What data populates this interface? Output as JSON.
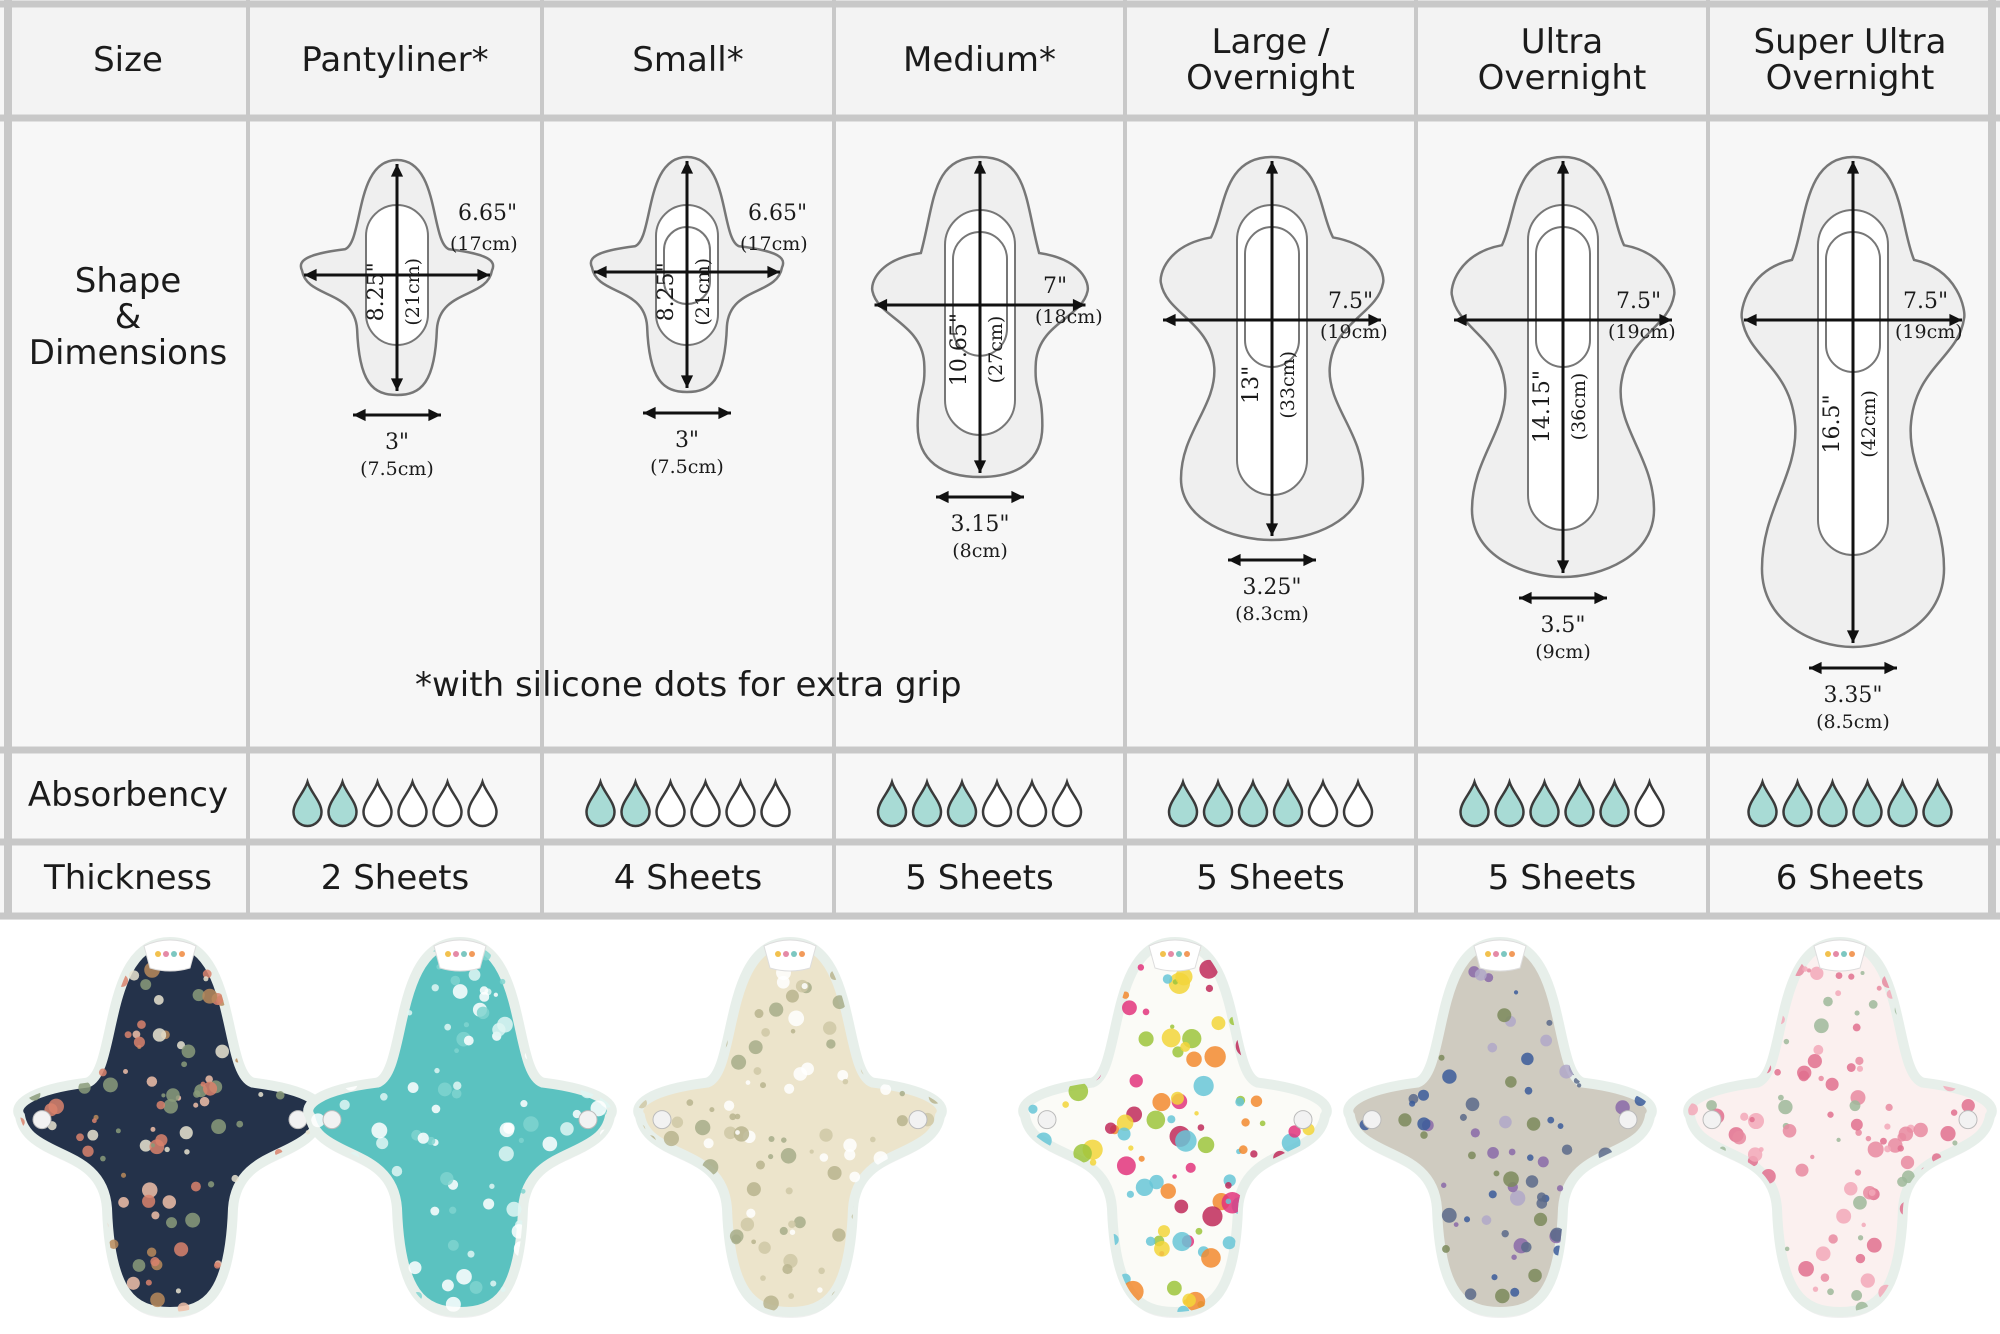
{
  "row_labels": {
    "size": "Size",
    "shape": [
      "Shape",
      "&",
      "Dimensions"
    ],
    "absorbency": "Absorbency",
    "thickness": "Thickness"
  },
  "note": "*with silicone dots for extra grip",
  "colors": {
    "grid_line": "#c8c8c8",
    "drop_fill": "#a8dbd5",
    "drop_outline": "#3a3a3a",
    "pad_outline": "#777777"
  },
  "products": [
    {
      "header": [
        "Pantyliner*"
      ],
      "length_in": "8.25\"",
      "length_cm": "(21cm)",
      "width_in": "6.65\"",
      "width_cm": "(17cm)",
      "base_in": "3\"",
      "base_cm": "(7.5cm)",
      "absorbency": 2,
      "absorbency_max": 6,
      "thickness": "2 Sheets",
      "fabric": "navy-floral"
    },
    {
      "header": [
        "Small*"
      ],
      "length_in": "8.25\"",
      "length_cm": "(21cm)",
      "width_in": "6.65\"",
      "width_cm": "(17cm)",
      "base_in": "3\"",
      "base_cm": "(7.5cm)",
      "absorbency": 2,
      "absorbency_max": 6,
      "thickness": "4 Sheets",
      "fabric": "teal-daisy"
    },
    {
      "header": [
        "Medium*"
      ],
      "length_in": "10.65\"",
      "length_cm": "(27cm)",
      "width_in": "7\"",
      "width_cm": "(18cm)",
      "base_in": "3.15\"",
      "base_cm": "(8cm)",
      "absorbency": 3,
      "absorbency_max": 6,
      "thickness": "5 Sheets",
      "fabric": "cream-vine"
    },
    {
      "header": [
        "Large /",
        "Overnight"
      ],
      "length_in": "13\"",
      "length_cm": "(33cm)",
      "width_in": "7.5\"",
      "width_cm": "(19cm)",
      "base_in": "3.25\"",
      "base_cm": "(8.3cm)",
      "absorbency": 4,
      "absorbency_max": 6,
      "thickness": "5 Sheets",
      "fabric": "white-bright-floral"
    },
    {
      "header": [
        "Ultra",
        "Overnight"
      ],
      "length_in": "14.15\"",
      "length_cm": "(36cm)",
      "width_in": "7.5\"",
      "width_cm": "(19cm)",
      "base_in": "3.5\"",
      "base_cm": "(9cm)",
      "absorbency": 5,
      "absorbency_max": 6,
      "thickness": "5 Sheets",
      "fabric": "grey-liberty-floral"
    },
    {
      "header": [
        "Super Ultra",
        "Overnight"
      ],
      "length_in": "16.5\"",
      "length_cm": "(42cm)",
      "width_in": "7.5\"",
      "width_cm": "(19cm)",
      "base_in": "3.35\"",
      "base_cm": "(8.5cm)",
      "absorbency": 6,
      "absorbency_max": 6,
      "thickness": "6 Sheets",
      "fabric": "blush-rose"
    }
  ]
}
